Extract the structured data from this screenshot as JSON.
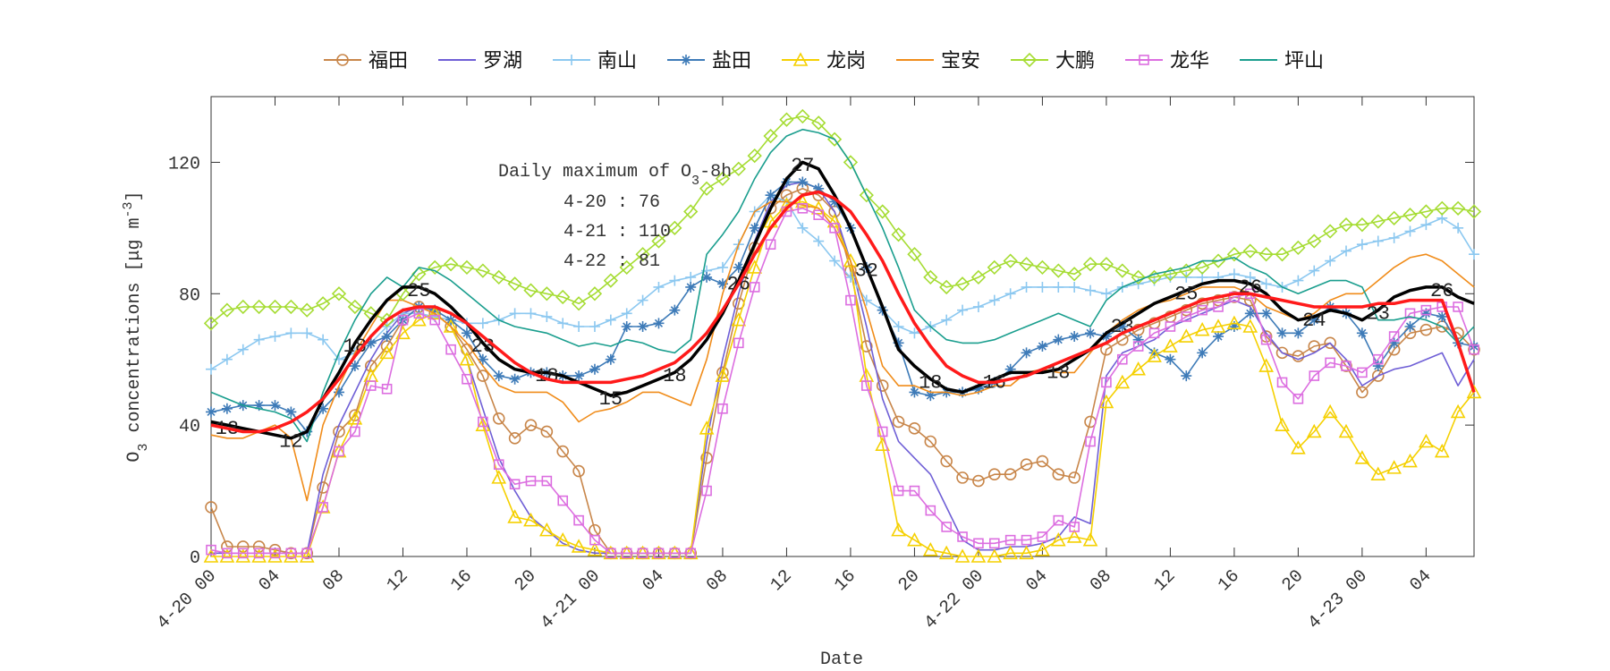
{
  "chart_data": {
    "type": "line",
    "ylabel": [
      {
        "text": "O"
      },
      {
        "text": "3",
        "shift": "sub"
      },
      {
        "text": " concentrations ["
      },
      {
        "text": "μg m"
      },
      {
        "text": "-3",
        "shift": "super"
      },
      {
        "text": "]"
      }
    ],
    "xlabel": "Date",
    "x": [
      0,
      1,
      2,
      3,
      4,
      5,
      6,
      7,
      8,
      9,
      10,
      11,
      12,
      13,
      14,
      15,
      16,
      17,
      18,
      19,
      20,
      21,
      22,
      23,
      24,
      25,
      26,
      27,
      28,
      29,
      30,
      31,
      32,
      33,
      34,
      35,
      36,
      37,
      38,
      39,
      40,
      41,
      42,
      43,
      44,
      45,
      46,
      47,
      48,
      49,
      50,
      51,
      52,
      53,
      54,
      55,
      56,
      57,
      58,
      59,
      60,
      61,
      62,
      63,
      64,
      65,
      66,
      67,
      68,
      69,
      70,
      71,
      72,
      73,
      74,
      75,
      76,
      77,
      78,
      79
    ],
    "xlim": [
      0,
      79
    ],
    "xticks": [
      {
        "value": 0,
        "label": "4-20 00"
      },
      {
        "value": 4,
        "label": "04"
      },
      {
        "value": 8,
        "label": "08"
      },
      {
        "value": 12,
        "label": "12"
      },
      {
        "value": 16,
        "label": "16"
      },
      {
        "value": 20,
        "label": "20"
      },
      {
        "value": 24,
        "label": "4-21 00"
      },
      {
        "value": 28,
        "label": "04"
      },
      {
        "value": 32,
        "label": "08"
      },
      {
        "value": 36,
        "label": "12"
      },
      {
        "value": 40,
        "label": "16"
      },
      {
        "value": 44,
        "label": "20"
      },
      {
        "value": 48,
        "label": "4-22 00"
      },
      {
        "value": 52,
        "label": "04"
      },
      {
        "value": 56,
        "label": "08"
      },
      {
        "value": 60,
        "label": "12"
      },
      {
        "value": 64,
        "label": "16"
      },
      {
        "value": 68,
        "label": "20"
      },
      {
        "value": 72,
        "label": "4-23 00"
      },
      {
        "value": 76,
        "label": "04"
      }
    ],
    "ylim": [
      0,
      140
    ],
    "yticks": [
      0,
      40,
      80,
      120
    ],
    "text_box": {
      "title": [
        {
          "text": "Daily maximum of O"
        },
        {
          "text": "3",
          "shift": "sub"
        },
        {
          "text": "-8h"
        }
      ],
      "lines": [
        "4-20 : 76",
        "4-21 : 110",
        "4-22 : 81"
      ]
    },
    "series": [
      {
        "name": "福田",
        "color": "#c8864a",
        "marker": "circle",
        "values": [
          15,
          3,
          3,
          3,
          2,
          1,
          1,
          21,
          38,
          43,
          58,
          64,
          72,
          76,
          74,
          70,
          63,
          55,
          42,
          36,
          40,
          38,
          32,
          26,
          8,
          1,
          1,
          1,
          1,
          1,
          1,
          30,
          56,
          77,
          94,
          106,
          110,
          112,
          110,
          105,
          87,
          64,
          52,
          41,
          39,
          35,
          29,
          24,
          23,
          25,
          25,
          28,
          29,
          25,
          24,
          41,
          63,
          66,
          69,
          71,
          73,
          75,
          77,
          78,
          79,
          78,
          67,
          62,
          61,
          64,
          65,
          58,
          50,
          55,
          63,
          68,
          69,
          70,
          68,
          63
        ]
      },
      {
        "name": "罗湖",
        "color": "#6f5fd6",
        "marker": null,
        "values": [
          1,
          1,
          1,
          1,
          1,
          1,
          1,
          25,
          40,
          50,
          60,
          68,
          74,
          76,
          74,
          70,
          60,
          45,
          30,
          20,
          12,
          8,
          4,
          2,
          1,
          1,
          1,
          1,
          1,
          1,
          1,
          35,
          60,
          80,
          96,
          108,
          113,
          114,
          112,
          105,
          90,
          70,
          48,
          35,
          30,
          25,
          15,
          5,
          2,
          2,
          3,
          3,
          4,
          6,
          12,
          10,
          55,
          62,
          64,
          66,
          70,
          72,
          74,
          76,
          78,
          76,
          68,
          62,
          60,
          62,
          65,
          60,
          52,
          55,
          57,
          58,
          60,
          62,
          52,
          60
        ]
      },
      {
        "name": "南山",
        "color": "#8cc8f0",
        "marker": "plus",
        "values": [
          57,
          60,
          63,
          66,
          67,
          68,
          68,
          66,
          60,
          62,
          65,
          70,
          74,
          74,
          73,
          72,
          71,
          71,
          72,
          74,
          74,
          73,
          71,
          70,
          70,
          72,
          74,
          78,
          82,
          84,
          85,
          87,
          88,
          95,
          105,
          110,
          108,
          100,
          96,
          90,
          85,
          78,
          75,
          70,
          68,
          70,
          72,
          75,
          76,
          78,
          80,
          82,
          82,
          82,
          82,
          81,
          80,
          82,
          83,
          84,
          85,
          85,
          85,
          85,
          86,
          85,
          83,
          82,
          84,
          87,
          90,
          93,
          95,
          96,
          97,
          99,
          101,
          103,
          100,
          92
        ]
      },
      {
        "name": "盐田",
        "color": "#3e7bb8",
        "marker": "star",
        "values": [
          44,
          45,
          46,
          46,
          46,
          44,
          38,
          45,
          50,
          58,
          65,
          67,
          72,
          76,
          75,
          72,
          68,
          60,
          55,
          54,
          56,
          56,
          55,
          55,
          57,
          60,
          70,
          70,
          71,
          75,
          82,
          85,
          83,
          88,
          100,
          110,
          114,
          114,
          112,
          108,
          100,
          88,
          75,
          65,
          50,
          49,
          50,
          50,
          51,
          53,
          57,
          62,
          64,
          66,
          67,
          68,
          67,
          70,
          66,
          62,
          60,
          55,
          62,
          67,
          70,
          74,
          74,
          68,
          68,
          72,
          76,
          74,
          68,
          58,
          65,
          70,
          74,
          73,
          65,
          64
        ]
      },
      {
        "name": "龙岗",
        "color": "#f5d000",
        "marker": "triangle",
        "values": [
          0,
          0,
          0,
          0,
          0,
          0,
          0,
          15,
          32,
          42,
          55,
          62,
          68,
          72,
          74,
          70,
          60,
          40,
          24,
          12,
          11,
          8,
          5,
          3,
          2,
          1,
          1,
          1,
          1,
          1,
          1,
          39,
          55,
          72,
          88,
          102,
          107,
          108,
          106,
          102,
          90,
          55,
          34,
          8,
          5,
          2,
          1,
          0,
          0,
          0,
          1,
          1,
          2,
          5,
          6,
          5,
          47,
          53,
          57,
          61,
          64,
          67,
          69,
          70,
          71,
          70,
          58,
          40,
          33,
          38,
          44,
          38,
          30,
          25,
          27,
          29,
          35,
          32,
          44,
          50
        ]
      },
      {
        "name": "宝安",
        "color": "#f08c1a",
        "marker": null,
        "values": [
          37,
          36,
          36,
          38,
          40,
          36,
          17,
          40,
          52,
          62,
          70,
          78,
          78,
          76,
          74,
          70,
          65,
          58,
          52,
          50,
          50,
          50,
          47,
          41,
          44,
          45,
          47,
          50,
          50,
          48,
          46,
          60,
          80,
          95,
          105,
          108,
          108,
          107,
          106,
          100,
          90,
          75,
          58,
          52,
          52,
          50,
          50,
          49,
          50,
          52,
          52,
          56,
          57,
          56,
          56,
          62,
          68,
          72,
          75,
          77,
          78,
          80,
          82,
          82,
          82,
          80,
          76,
          74,
          72,
          74,
          78,
          80,
          80,
          84,
          88,
          91,
          92,
          90,
          86,
          82
        ]
      },
      {
        "name": "大鹏",
        "color": "#a5dc32",
        "marker": "diamond",
        "values": [
          71,
          75,
          76,
          76,
          76,
          76,
          75,
          77,
          80,
          76,
          74,
          72,
          80,
          86,
          88,
          89,
          88,
          87,
          85,
          83,
          81,
          80,
          79,
          77,
          80,
          84,
          88,
          92,
          96,
          100,
          105,
          112,
          115,
          118,
          122,
          128,
          133,
          134,
          132,
          127,
          120,
          110,
          105,
          98,
          92,
          85,
          82,
          83,
          85,
          88,
          90,
          89,
          88,
          87,
          86,
          89,
          89,
          87,
          85,
          85,
          86,
          87,
          88,
          90,
          92,
          93,
          92,
          92,
          94,
          96,
          99,
          101,
          101,
          102,
          103,
          104,
          105,
          106,
          106,
          105
        ]
      },
      {
        "name": "龙华",
        "color": "#dc6ee0",
        "marker": "square",
        "values": [
          2,
          1,
          1,
          1,
          1,
          1,
          1,
          15,
          32,
          38,
          52,
          51,
          72,
          74,
          72,
          63,
          54,
          41,
          28,
          22,
          23,
          23,
          17,
          11,
          5,
          1,
          1,
          1,
          1,
          1,
          1,
          20,
          45,
          65,
          82,
          95,
          105,
          106,
          104,
          100,
          78,
          52,
          38,
          20,
          20,
          14,
          9,
          6,
          4,
          4,
          5,
          5,
          6,
          11,
          9,
          35,
          53,
          60,
          64,
          68,
          70,
          73,
          75,
          76,
          79,
          80,
          66,
          53,
          48,
          55,
          59,
          58,
          56,
          60,
          67,
          74,
          75,
          76,
          76,
          63
        ]
      },
      {
        "name": "坪山",
        "color": "#1a9e8e",
        "marker": null,
        "values": [
          50,
          48,
          46,
          45,
          44,
          42,
          35,
          50,
          62,
          72,
          80,
          85,
          82,
          88,
          87,
          84,
          80,
          76,
          72,
          70,
          69,
          68,
          66,
          64,
          65,
          64,
          66,
          65,
          63,
          62,
          66,
          92,
          98,
          105,
          115,
          123,
          128,
          130,
          129,
          127,
          120,
          110,
          100,
          88,
          75,
          70,
          66,
          65,
          65,
          66,
          68,
          70,
          72,
          74,
          72,
          70,
          78,
          82,
          84,
          86,
          87,
          88,
          90,
          90,
          91,
          88,
          86,
          82,
          80,
          82,
          84,
          84,
          82,
          72,
          72,
          73,
          72,
          70,
          65,
          70
        ]
      },
      {
        "color": "#000000",
        "width": 3.5,
        "marker": null,
        "values": [
          41,
          40,
          39,
          38,
          37,
          36,
          38,
          48,
          56,
          65,
          72,
          78,
          82,
          82,
          80,
          76,
          71,
          65,
          60,
          57,
          56,
          56,
          55,
          53,
          51,
          49,
          50,
          52,
          54,
          56,
          60,
          66,
          74,
          84,
          95,
          106,
          115,
          120,
          118,
          110,
          100,
          88,
          76,
          63,
          58,
          54,
          51,
          50,
          52,
          54,
          56,
          56,
          56,
          57,
          60,
          63,
          68,
          71,
          74,
          77,
          79,
          81,
          83,
          84,
          84,
          83,
          80,
          75,
          72,
          73,
          75,
          74,
          72,
          75,
          79,
          81,
          82,
          82,
          79,
          77
        ],
        "labels": {
          "x": [
            1,
            5,
            9,
            13,
            17,
            21,
            25,
            29,
            33,
            37,
            41,
            45,
            49,
            53,
            57,
            61,
            65,
            69,
            73,
            77
          ],
          "values": [
            13,
            12,
            18,
            25,
            23,
            18,
            15,
            18,
            26,
            27,
            32,
            18,
            16,
            18,
            23,
            25,
            26,
            24,
            23,
            26
          ]
        }
      },
      {
        "color": "#ff1a1a",
        "width": 3.5,
        "marker": null,
        "values": [
          40,
          39,
          38,
          38,
          39,
          41,
          44,
          48,
          54,
          61,
          67,
          72,
          75,
          76,
          76,
          74,
          71,
          67,
          63,
          59,
          56,
          54,
          53,
          53,
          53,
          53,
          54,
          55,
          57,
          59,
          63,
          68,
          75,
          83,
          92,
          100,
          106,
          110,
          111,
          109,
          105,
          98,
          90,
          80,
          71,
          64,
          58,
          55,
          53,
          53,
          54,
          55,
          57,
          59,
          61,
          63,
          65,
          68,
          70,
          72,
          74,
          76,
          78,
          79,
          80,
          80,
          79,
          78,
          77,
          76,
          76,
          76,
          76,
          77,
          77,
          78,
          78,
          78,
          65,
          50
        ]
      }
    ]
  }
}
